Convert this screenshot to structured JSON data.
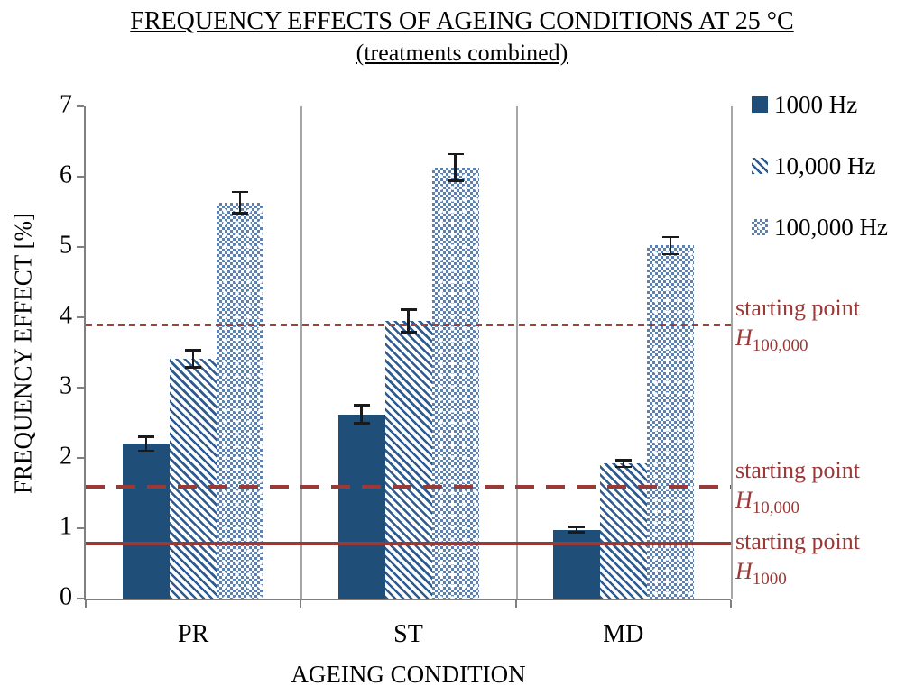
{
  "title": "FREQUENCY EFFECTS OF AGEING CONDITIONS AT 25 °C",
  "subtitle": "(treatments combined)",
  "colors": {
    "bar_solid": "#1f4e79",
    "hatch_blue": "#2e5b90",
    "dots_blue": "#5d80af",
    "reference_red": "#9b3937",
    "axis_gray": "#7f7f7f",
    "separator_gray": "#a6a6a6"
  },
  "chart_data": {
    "type": "bar",
    "title": "FREQUENCY EFFECTS OF AGEING CONDITIONS AT 25 °C (treatments combined)",
    "xlabel": "AGEING CONDITION",
    "ylabel": "FREQUENCY EFFECT [%]",
    "ylim": [
      0,
      7
    ],
    "yticks": [
      0,
      1,
      2,
      3,
      4,
      5,
      6,
      7
    ],
    "categories": [
      "PR",
      "ST",
      "MD"
    ],
    "series": [
      {
        "name": "1000 Hz",
        "pattern": "solid",
        "values": [
          2.2,
          2.62,
          0.98
        ],
        "errors": [
          0.1,
          0.13,
          0.04
        ]
      },
      {
        "name": "10,000 Hz",
        "pattern": "hatch",
        "values": [
          3.41,
          3.95,
          1.92
        ],
        "errors": [
          0.12,
          0.16,
          0.05
        ]
      },
      {
        "name": "100,000 Hz",
        "pattern": "dots",
        "values": [
          5.63,
          6.13,
          5.02
        ],
        "errors": [
          0.15,
          0.19,
          0.12
        ]
      }
    ],
    "reference_lines": [
      {
        "value": 3.88,
        "style": "dotted",
        "label_line1": "starting point",
        "label_symbol": "H",
        "label_subscript": "100,000"
      },
      {
        "value": 1.59,
        "style": "dashed",
        "label_line1": "starting point",
        "label_symbol": "H",
        "label_subscript": "10,000"
      },
      {
        "value": 0.78,
        "style": "solid",
        "label_line1": "starting point",
        "label_symbol": "H",
        "label_subscript": "1000"
      }
    ],
    "legend_position": "right",
    "grid": "vertical panel separators only",
    "error_bars": true
  }
}
